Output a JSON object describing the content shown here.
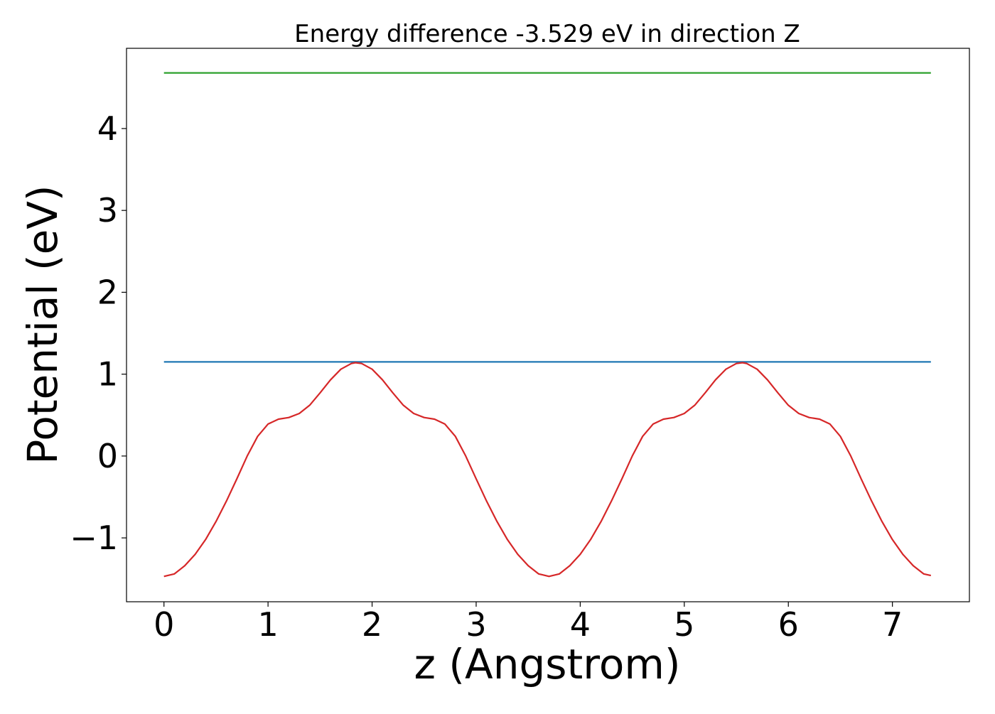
{
  "chart_data": {
    "type": "line",
    "title": "Energy difference -3.529 eV in direction Z",
    "xlabel": "z (Angstrom)",
    "ylabel": "Potential (eV)",
    "xlim": [
      -0.36,
      7.74
    ],
    "ylim": [
      -1.78,
      4.98
    ],
    "grid": false,
    "legend": "none",
    "x_ticks": [
      {
        "value": 0,
        "label": "0"
      },
      {
        "value": 1,
        "label": "1"
      },
      {
        "value": 2,
        "label": "2"
      },
      {
        "value": 3,
        "label": "3"
      },
      {
        "value": 4,
        "label": "4"
      },
      {
        "value": 5,
        "label": "5"
      },
      {
        "value": 6,
        "label": "6"
      },
      {
        "value": 7,
        "label": "7"
      }
    ],
    "y_ticks": [
      {
        "value": -1,
        "label": "−1"
      },
      {
        "value": 0,
        "label": "0"
      },
      {
        "value": 1,
        "label": "1"
      },
      {
        "value": 2,
        "label": "2"
      },
      {
        "value": 3,
        "label": "3"
      },
      {
        "value": 4,
        "label": "4"
      }
    ],
    "series": [
      {
        "color": "#2ca02c",
        "x": [
          0,
          7.37
        ],
        "y": [
          4.68,
          4.68
        ]
      },
      {
        "color": "#1f77b4",
        "x": [
          0,
          7.37
        ],
        "y": [
          1.15,
          1.15
        ]
      },
      {
        "color": "#d62728",
        "x": [
          0,
          0.1,
          0.2,
          0.3,
          0.4,
          0.5,
          0.6,
          0.7,
          0.8,
          0.9,
          1.0,
          1.1,
          1.2,
          1.3,
          1.4,
          1.5,
          1.6,
          1.7,
          1.8,
          1.84,
          1.9,
          2.0,
          2.1,
          2.2,
          2.3,
          2.4,
          2.5,
          2.6,
          2.7,
          2.8,
          2.9,
          3.0,
          3.1,
          3.2,
          3.3,
          3.4,
          3.5,
          3.6,
          3.7,
          3.8,
          3.9,
          4.0,
          4.1,
          4.2,
          4.3,
          4.4,
          4.5,
          4.6,
          4.7,
          4.8,
          4.9,
          5.0,
          5.1,
          5.2,
          5.3,
          5.4,
          5.5,
          5.56,
          5.6,
          5.7,
          5.8,
          5.9,
          6.0,
          6.1,
          6.2,
          6.3,
          6.4,
          6.5,
          6.6,
          6.7,
          6.8,
          6.9,
          7.0,
          7.1,
          7.2,
          7.3,
          7.37
        ],
        "y": [
          -1.47,
          -1.44,
          -1.34,
          -1.2,
          -1.02,
          -0.8,
          -0.55,
          -0.28,
          0.0,
          0.24,
          0.39,
          0.45,
          0.47,
          0.52,
          0.62,
          0.77,
          0.93,
          1.06,
          1.13,
          1.14,
          1.13,
          1.06,
          0.93,
          0.77,
          0.62,
          0.52,
          0.47,
          0.45,
          0.39,
          0.24,
          0.0,
          -0.28,
          -0.55,
          -0.8,
          -1.02,
          -1.2,
          -1.34,
          -1.44,
          -1.47,
          -1.44,
          -1.34,
          -1.2,
          -1.02,
          -0.8,
          -0.55,
          -0.28,
          0.0,
          0.24,
          0.39,
          0.45,
          0.47,
          0.52,
          0.62,
          0.77,
          0.93,
          1.06,
          1.13,
          1.14,
          1.13,
          1.06,
          0.93,
          0.77,
          0.62,
          0.52,
          0.47,
          0.45,
          0.39,
          0.24,
          0.0,
          -0.28,
          -0.55,
          -0.8,
          -1.02,
          -1.2,
          -1.34,
          -1.44,
          -1.46
        ]
      }
    ]
  }
}
